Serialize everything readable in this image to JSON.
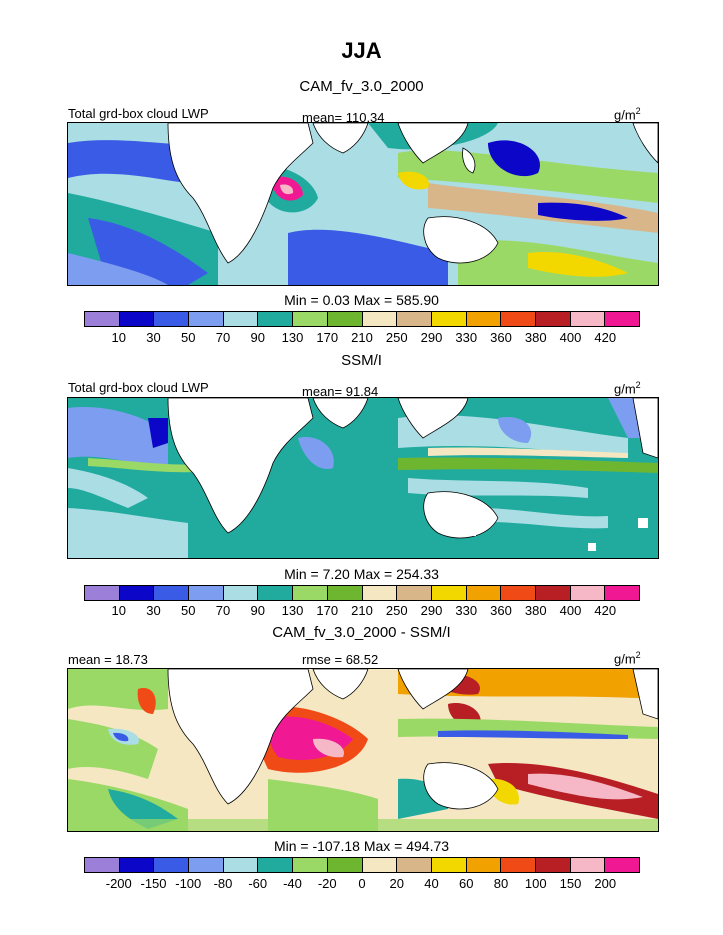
{
  "title": "JJA",
  "unit": "g/m",
  "unit_sup": "2",
  "palette_levels": [
    "#9b7fd8",
    "#0b06c8",
    "#3a5be5",
    "#7d9ef0",
    "#abdde4",
    "#21ab9f",
    "#9bd966",
    "#6fb630",
    "#f4e7c2",
    "#d9b58a",
    "#f3d800",
    "#f2a200",
    "#f04a17",
    "#b71f25",
    "#f6b8c6",
    "#f01993"
  ],
  "panels": [
    {
      "id": "cam",
      "subtitle": "CAM_fv_3.0_2000",
      "label_left": "Total grd-box cloud LWP",
      "label_mid": "mean=  110.34",
      "stats": "Min =    0.03 Max = 585.90",
      "colorbar_ticks": [
        "10",
        "30",
        "50",
        "70",
        "90",
        "130",
        "170",
        "210",
        "250",
        "290",
        "330",
        "360",
        "380",
        "400",
        "420"
      ]
    },
    {
      "id": "ssmi",
      "subtitle": "SSM/I",
      "label_left": "Total grd-box cloud LWP",
      "label_mid": "mean=   91.84",
      "stats": "Min =    7.20 Max = 254.33",
      "colorbar_ticks": [
        "10",
        "30",
        "50",
        "70",
        "90",
        "130",
        "170",
        "210",
        "250",
        "290",
        "330",
        "360",
        "380",
        "400",
        "420"
      ]
    },
    {
      "id": "diff",
      "subtitle": "CAM_fv_3.0_2000 - SSM/I",
      "label_left": "mean =   18.73",
      "label_mid": "rmse =   68.52",
      "stats": "Min = -107.18 Max = 494.73",
      "colorbar_ticks": [
        "-200",
        "-150",
        "-100",
        "-80",
        "-60",
        "-40",
        "-20",
        "0",
        "20",
        "40",
        "60",
        "80",
        "100",
        "150",
        "200"
      ]
    }
  ]
}
